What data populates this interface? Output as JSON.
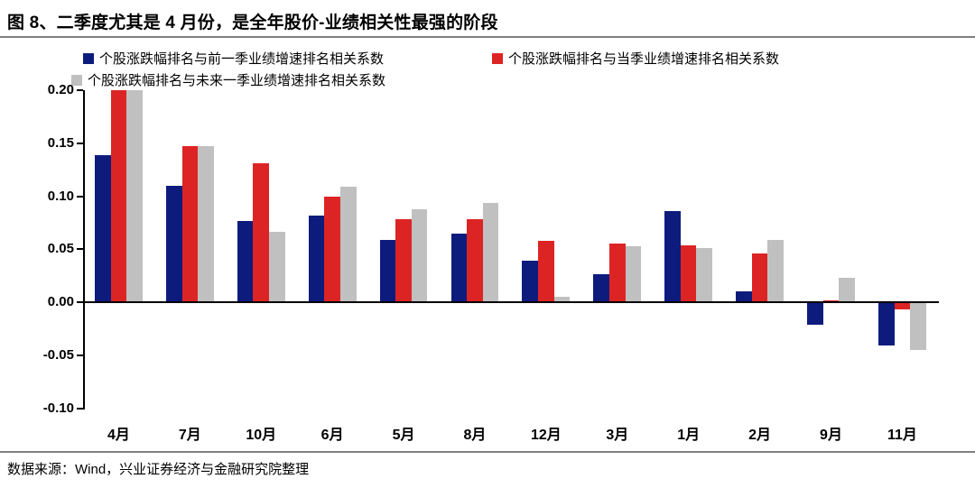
{
  "title": "图 8、二季度尤其是 4 月份，是全年股价-业绩相关性最强的阶段",
  "source_note": "数据来源：Wind，兴业证券经济与金融研究院整理",
  "colors": {
    "series_prev": "#0d1c7c",
    "series_curr": "#dd2424",
    "series_next": "#c0c0c0",
    "rule": "#808080",
    "axis": "#000000"
  },
  "chart_data": {
    "type": "bar",
    "title": "图 8、二季度尤其是 4 月份，是全年股价-业绩相关性最强的阶段",
    "legend_position": "top",
    "grid": false,
    "categories": [
      "4月",
      "7月",
      "10月",
      "6月",
      "5月",
      "8月",
      "12月",
      "3月",
      "1月",
      "2月",
      "9月",
      "11月"
    ],
    "series": [
      {
        "name": "个股涨跌幅排名与前一季业绩增速排名相关系数",
        "color_key": "series_prev",
        "values": [
          0.139,
          0.11,
          0.077,
          0.082,
          0.059,
          0.065,
          0.039,
          0.026,
          0.086,
          0.01,
          -0.02,
          -0.04
        ]
      },
      {
        "name": "个股涨跌幅排名与当季业绩增速排名相关系数",
        "color_key": "series_curr",
        "values": [
          0.2,
          0.147,
          0.131,
          0.1,
          0.078,
          0.078,
          0.058,
          0.055,
          0.054,
          0.046,
          0.002,
          -0.006
        ]
      },
      {
        "name": "个股涨跌幅排名与未来一季业绩增速排名相关系数",
        "color_key": "series_next",
        "values": [
          0.2,
          0.147,
          0.066,
          0.109,
          0.088,
          0.094,
          0.005,
          0.053,
          0.051,
          0.059,
          0.023,
          -0.044
        ]
      }
    ],
    "ylim": [
      -0.1,
      0.2
    ],
    "ytick_labels": [
      "0.20",
      "0.15",
      "0.10",
      "0.05",
      "0.00",
      "-0.05",
      "-0.10"
    ],
    "xlabel": "",
    "ylabel": ""
  }
}
